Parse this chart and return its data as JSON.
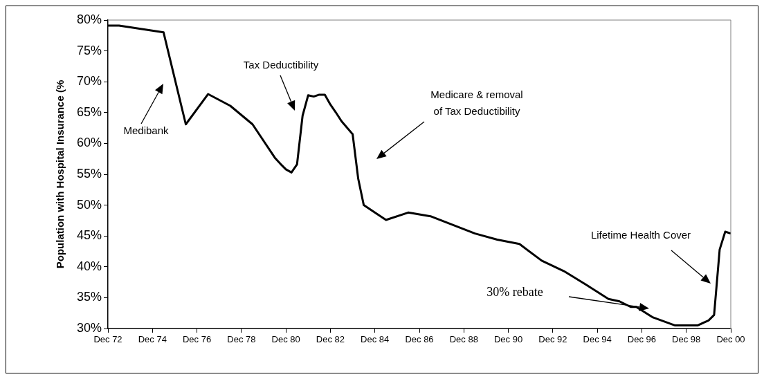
{
  "chart_data": {
    "type": "line",
    "ylabel": "Population with Hospital Insurance (%",
    "x": [
      "1972-12",
      "1973-06",
      "1975-06",
      "1976-06",
      "1977-06",
      "1978-06",
      "1979-06",
      "1980-06",
      "1980-09",
      "1980-12",
      "1981-03",
      "1981-06",
      "1981-09",
      "1981-12",
      "1982-03",
      "1982-06",
      "1982-09",
      "1982-12",
      "1983-03",
      "1983-06",
      "1983-12",
      "1984-03",
      "1984-06",
      "1984-11",
      "1985-06",
      "1986-06",
      "1987-06",
      "1988-06",
      "1989-06",
      "1990-06",
      "1991-06",
      "1992-06",
      "1993-06",
      "1994-06",
      "1995-06",
      "1995-12",
      "1996-06",
      "1996-09",
      "1997-06",
      "1998-06",
      "1999-06",
      "1999-12",
      "2000-03",
      "2000-06",
      "2000-09",
      "2000-12"
    ],
    "series": [
      {
        "color": "#000000",
        "values": [
          79.1,
          79.1,
          78.0,
          63.1,
          68.0,
          66.1,
          63.1,
          57.7,
          56.7,
          55.8,
          55.3,
          56.6,
          64.5,
          67.8,
          67.6,
          67.9,
          67.9,
          66.3,
          65.0,
          63.6,
          61.5,
          54.3,
          50.0,
          49.0,
          47.6,
          48.8,
          48.2,
          46.8,
          45.4,
          44.4,
          43.7,
          41.0,
          39.3,
          37.1,
          34.8,
          34.4,
          33.5,
          33.5,
          31.8,
          30.5,
          30.5,
          31.3,
          32.2,
          42.8,
          45.7,
          45.4
        ]
      }
    ],
    "xlim": [
      "1972-12",
      "2000-12"
    ],
    "xticks": [
      {
        "value": "1972-12",
        "label": "Dec 72"
      },
      {
        "value": "1974-12",
        "label": "Dec 74"
      },
      {
        "value": "1976-12",
        "label": "Dec 76"
      },
      {
        "value": "1978-12",
        "label": "Dec 78"
      },
      {
        "value": "1980-12",
        "label": "Dec 80"
      },
      {
        "value": "1982-12",
        "label": "Dec 82"
      },
      {
        "value": "1984-12",
        "label": "Dec 84"
      },
      {
        "value": "1986-12",
        "label": "Dec 86"
      },
      {
        "value": "1988-12",
        "label": "Dec 88"
      },
      {
        "value": "1990-12",
        "label": "Dec 90"
      },
      {
        "value": "1992-12",
        "label": "Dec 92"
      },
      {
        "value": "1994-12",
        "label": "Dec 94"
      },
      {
        "value": "1996-12",
        "label": "Dec 96"
      },
      {
        "value": "1998-12",
        "label": "Dec 98"
      },
      {
        "value": "2000-12",
        "label": "Dec 00"
      }
    ],
    "ylim": [
      30,
      80
    ],
    "yticks": [
      {
        "value": 30,
        "label": "30%"
      },
      {
        "value": 35,
        "label": "35%"
      },
      {
        "value": 40,
        "label": "40%"
      },
      {
        "value": 45,
        "label": "45%"
      },
      {
        "value": 50,
        "label": "50%"
      },
      {
        "value": 55,
        "label": "55%"
      },
      {
        "value": 60,
        "label": "60%"
      },
      {
        "value": 65,
        "label": "65%"
      },
      {
        "value": 70,
        "label": "70%"
      },
      {
        "value": 75,
        "label": "75%"
      },
      {
        "value": 80,
        "label": "80%"
      }
    ],
    "grid": false,
    "legend": false,
    "marker": "none",
    "line_style": "solid",
    "annotations": [
      "Medibank",
      "Tax Deductibility",
      "Medicare & removal\nof Tax Deductibility",
      "30% rebate",
      "Lifetime Health Cover"
    ]
  }
}
